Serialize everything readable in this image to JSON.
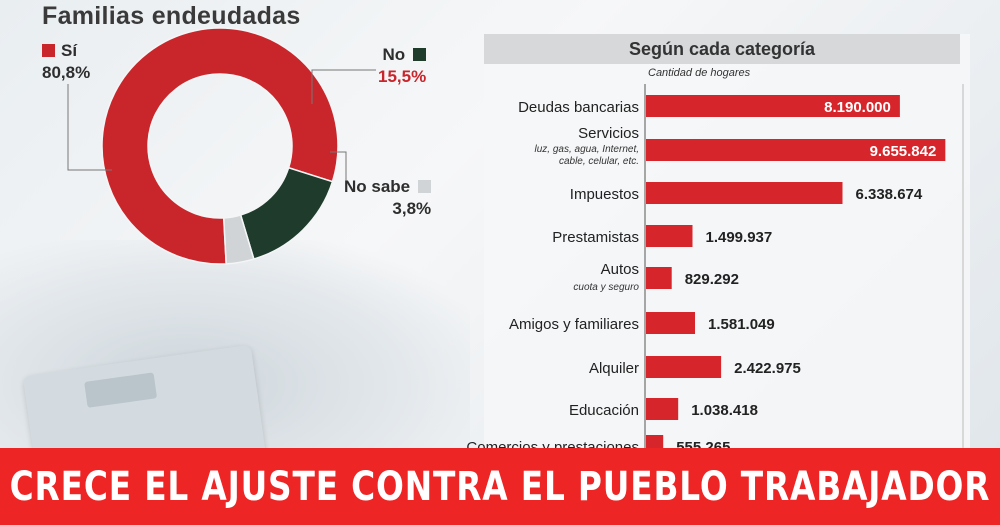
{
  "chart_data": [
    {
      "type": "pie",
      "title": "Familias endeudadas",
      "slices": [
        {
          "label": "Sí",
          "value": 80.8,
          "display": "80,8%",
          "color": "#c9262b"
        },
        {
          "label": "No",
          "value": 15.5,
          "display": "15,5%",
          "color": "#1e3b2b"
        },
        {
          "label": "No sabe",
          "value": 3.8,
          "display": "3,8%",
          "color": "#d0d4d6"
        }
      ]
    },
    {
      "type": "bar",
      "orientation": "horizontal",
      "title": "Según cada categoría",
      "subtitle": "Cantidad de hogares",
      "xlim": [
        0,
        10000000
      ],
      "bar_color": "#d7262b",
      "categories": [
        {
          "label": "Deudas bancarias",
          "sub": "",
          "value": 8190000,
          "display": "8.190.000",
          "label_inside": true
        },
        {
          "label": "Servicios",
          "sub": "luz, gas, agua, Internet,|cable, celular, etc.",
          "value": 9655842,
          "display": "9.655.842",
          "label_inside": true
        },
        {
          "label": "Impuestos",
          "sub": "",
          "value": 6338674,
          "display": "6.338.674",
          "label_inside": false
        },
        {
          "label": "Prestamistas",
          "sub": "",
          "value": 1499937,
          "display": "1.499.937",
          "label_inside": false
        },
        {
          "label": "Autos",
          "sub": "cuota y seguro",
          "value": 829292,
          "display": "829.292",
          "label_inside": false
        },
        {
          "label": "Amigos y familiares",
          "sub": "",
          "value": 1581049,
          "display": "1.581.049",
          "label_inside": false
        },
        {
          "label": "Alquiler",
          "sub": "",
          "value": 2422975,
          "display": "2.422.975",
          "label_inside": false
        },
        {
          "label": "Educación",
          "sub": "",
          "value": 1038418,
          "display": "1.038.418",
          "label_inside": false
        },
        {
          "label": "Comercios y prestaciones",
          "sub": "",
          "value": 555265,
          "display": "555.265",
          "label_inside": false
        }
      ]
    }
  ],
  "banner": {
    "headline": "CRECE EL AJUSTE CONTRA EL PUEBLO TRABAJADOR",
    "color": "#ee2525"
  }
}
